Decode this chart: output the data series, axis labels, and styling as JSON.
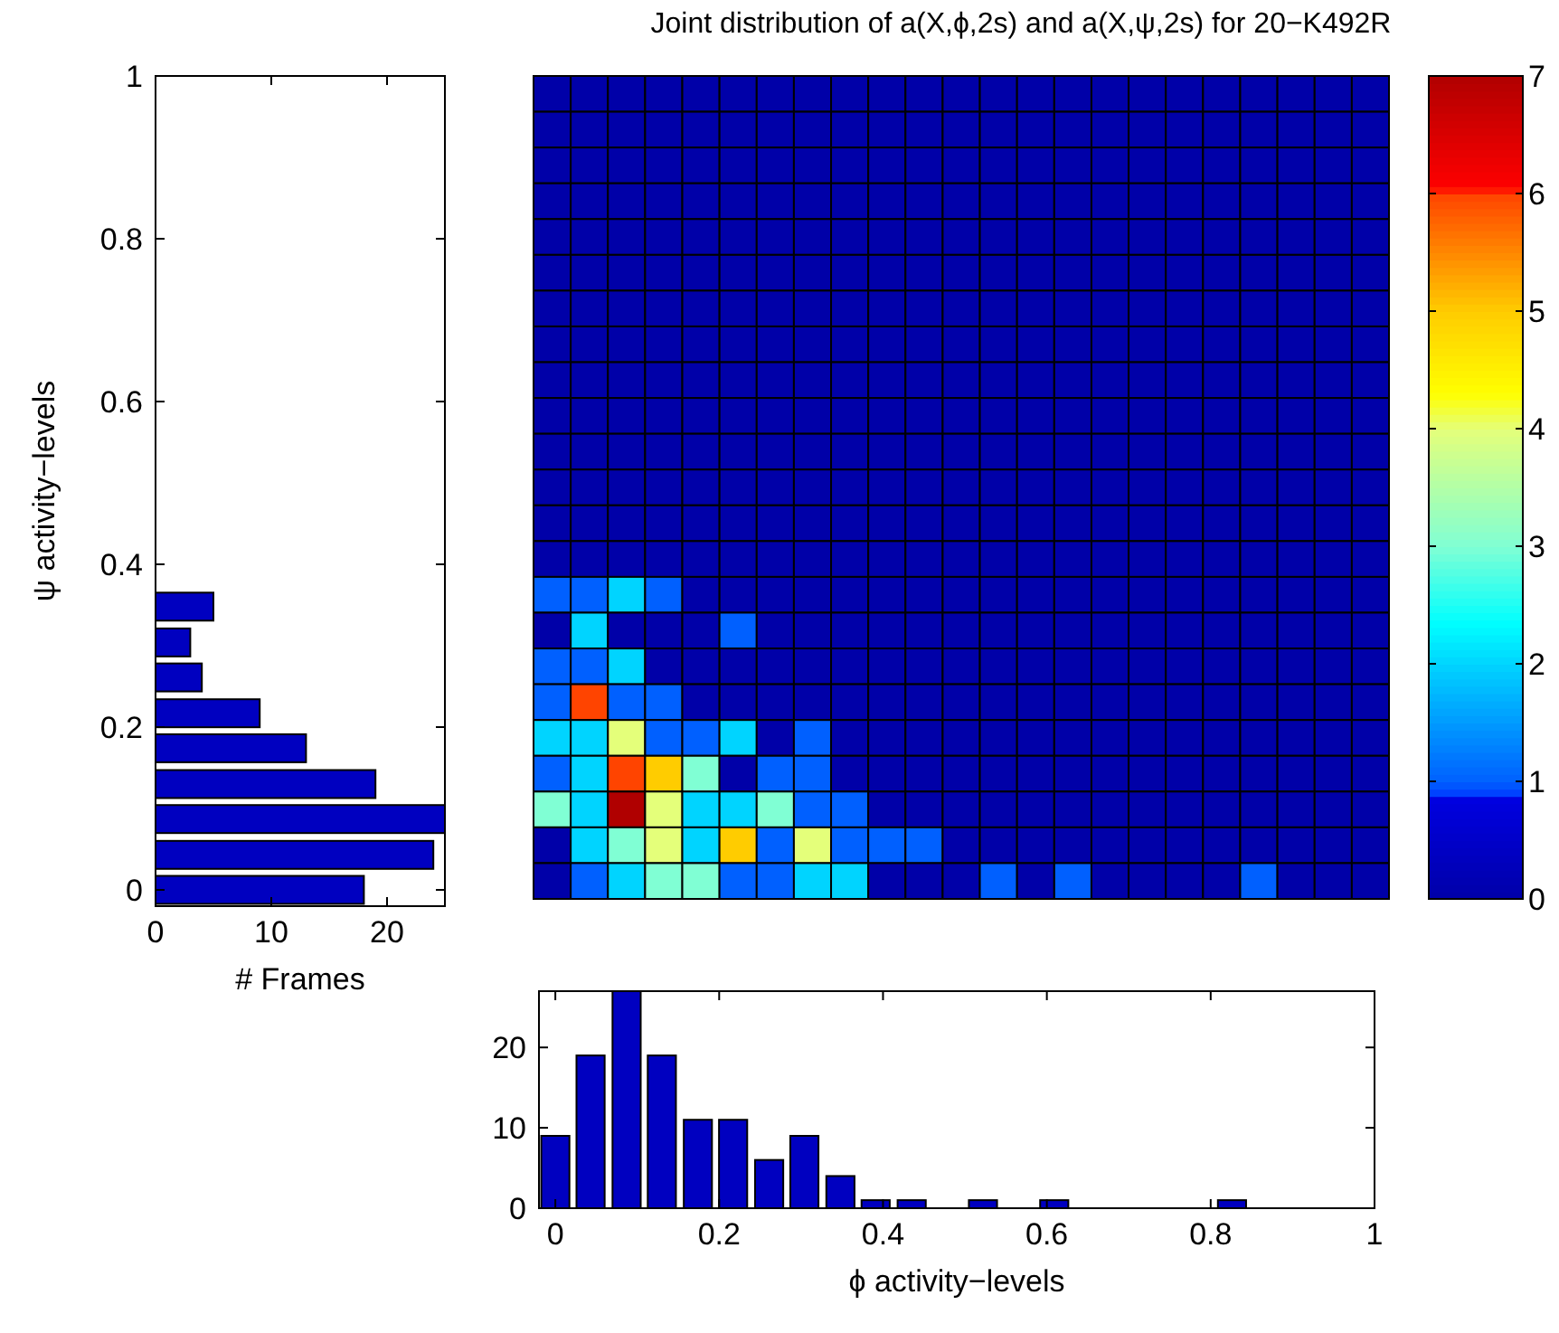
{
  "chart_data": [
    {
      "type": "bar",
      "orientation": "horizontal",
      "x": [
        0,
        0.043,
        0.087,
        0.13,
        0.174,
        0.217,
        0.261,
        0.304,
        0.348
      ],
      "values": [
        18,
        24,
        25,
        19,
        13,
        9,
        4,
        3,
        5
      ],
      "color": "#0000c0",
      "xlim": [
        0,
        25
      ],
      "xticks": [
        0,
        10,
        20
      ],
      "ylim": [
        -0.02,
        1
      ],
      "yticks": [
        0,
        0.2,
        0.4,
        0.6,
        0.8,
        1
      ],
      "xlabel": "# Frames",
      "ylabel": "ψ activity−levels"
    },
    {
      "type": "heatmap",
      "title": "Joint distribution of a(X,ϕ,2s) and a(X,ψ,2s) for 20−K492R",
      "categories": [
        null,
        null,
        null,
        null,
        null,
        null,
        null,
        null,
        null,
        null,
        null,
        null,
        null,
        null,
        null,
        null,
        null,
        null,
        null,
        null,
        null,
        null,
        null
      ],
      "y_categories": [
        null,
        null,
        null,
        null,
        null,
        null,
        null,
        null,
        null,
        null,
        null,
        null,
        null,
        null,
        null,
        null,
        null,
        null,
        null,
        null,
        null,
        null,
        null
      ],
      "cells": [
        [
          0,
          0,
          0,
          0,
          0,
          0,
          0,
          0,
          0,
          0,
          0,
          0,
          0,
          0,
          0,
          0,
          0,
          0,
          0,
          0,
          0,
          0,
          0
        ],
        [
          0,
          0,
          0,
          0,
          0,
          0,
          0,
          0,
          0,
          0,
          0,
          0,
          0,
          0,
          0,
          0,
          0,
          0,
          0,
          0,
          0,
          0,
          0
        ],
        [
          0,
          0,
          0,
          0,
          0,
          0,
          0,
          0,
          0,
          0,
          0,
          0,
          0,
          0,
          0,
          0,
          0,
          0,
          0,
          0,
          0,
          0,
          0
        ],
        [
          0,
          0,
          0,
          0,
          0,
          0,
          0,
          0,
          0,
          0,
          0,
          0,
          0,
          0,
          0,
          0,
          0,
          0,
          0,
          0,
          0,
          0,
          0
        ],
        [
          0,
          0,
          0,
          0,
          0,
          0,
          0,
          0,
          0,
          0,
          0,
          0,
          0,
          0,
          0,
          0,
          0,
          0,
          0,
          0,
          0,
          0,
          0
        ],
        [
          0,
          0,
          0,
          0,
          0,
          0,
          0,
          0,
          0,
          0,
          0,
          0,
          0,
          0,
          0,
          0,
          0,
          0,
          0,
          0,
          0,
          0,
          0
        ],
        [
          0,
          0,
          0,
          0,
          0,
          0,
          0,
          0,
          0,
          0,
          0,
          0,
          0,
          0,
          0,
          0,
          0,
          0,
          0,
          0,
          0,
          0,
          0
        ],
        [
          0,
          0,
          0,
          0,
          0,
          0,
          0,
          0,
          0,
          0,
          0,
          0,
          0,
          0,
          0,
          0,
          0,
          0,
          0,
          0,
          0,
          0,
          0
        ],
        [
          0,
          0,
          0,
          0,
          0,
          0,
          0,
          0,
          0,
          0,
          0,
          0,
          0,
          0,
          0,
          0,
          0,
          0,
          0,
          0,
          0,
          0,
          0
        ],
        [
          0,
          0,
          0,
          0,
          0,
          0,
          0,
          0,
          0,
          0,
          0,
          0,
          0,
          0,
          0,
          0,
          0,
          0,
          0,
          0,
          0,
          0,
          0
        ],
        [
          0,
          0,
          0,
          0,
          0,
          0,
          0,
          0,
          0,
          0,
          0,
          0,
          0,
          0,
          0,
          0,
          0,
          0,
          0,
          0,
          0,
          0,
          0
        ],
        [
          0,
          0,
          0,
          0,
          0,
          0,
          0,
          0,
          0,
          0,
          0,
          0,
          0,
          0,
          0,
          0,
          0,
          0,
          0,
          0,
          0,
          0,
          0
        ],
        [
          0,
          0,
          0,
          0,
          0,
          0,
          0,
          0,
          0,
          0,
          0,
          0,
          0,
          0,
          0,
          0,
          0,
          0,
          0,
          0,
          0,
          0,
          0
        ],
        [
          0,
          0,
          0,
          0,
          0,
          0,
          0,
          0,
          0,
          0,
          0,
          0,
          0,
          0,
          0,
          0,
          0,
          0,
          0,
          0,
          0,
          0,
          0
        ],
        [
          1,
          1,
          2,
          1,
          0,
          0,
          0,
          0,
          0,
          0,
          0,
          0,
          0,
          0,
          0,
          0,
          0,
          0,
          0,
          0,
          0,
          0,
          0
        ],
        [
          0,
          2,
          0,
          0,
          0,
          1,
          0,
          0,
          0,
          0,
          0,
          0,
          0,
          0,
          0,
          0,
          0,
          0,
          0,
          0,
          0,
          0,
          0
        ],
        [
          1,
          1,
          2,
          0,
          0,
          0,
          0,
          0,
          0,
          0,
          0,
          0,
          0,
          0,
          0,
          0,
          0,
          0,
          0,
          0,
          0,
          0,
          0
        ],
        [
          1,
          6,
          1,
          1,
          0,
          0,
          0,
          0,
          0,
          0,
          0,
          0,
          0,
          0,
          0,
          0,
          0,
          0,
          0,
          0,
          0,
          0,
          0
        ],
        [
          2,
          2,
          4,
          1,
          1,
          2,
          0,
          1,
          0,
          0,
          0,
          0,
          0,
          0,
          0,
          0,
          0,
          0,
          0,
          0,
          0,
          0,
          0
        ],
        [
          1,
          2,
          6,
          5,
          3,
          0,
          1,
          1,
          0,
          0,
          0,
          0,
          0,
          0,
          0,
          0,
          0,
          0,
          0,
          0,
          0,
          0,
          0
        ],
        [
          3,
          2,
          7,
          4,
          2,
          2,
          3,
          1,
          1,
          0,
          0,
          0,
          0,
          0,
          0,
          0,
          0,
          0,
          0,
          0,
          0,
          0,
          0
        ],
        [
          0,
          2,
          3,
          4,
          2,
          5,
          1,
          4,
          1,
          1,
          1,
          0,
          0,
          0,
          0,
          0,
          0,
          0,
          0,
          0,
          0,
          0,
          0
        ],
        [
          0,
          1,
          2,
          3,
          3,
          1,
          1,
          2,
          2,
          0,
          0,
          0,
          1,
          0,
          1,
          0,
          0,
          0,
          0,
          1,
          0,
          0,
          0
        ]
      ],
      "clim": [
        0,
        7
      ],
      "cticks": [
        0,
        1,
        2,
        3,
        4,
        5,
        6,
        7
      ]
    },
    {
      "type": "bar",
      "x": [
        0,
        0.043,
        0.087,
        0.13,
        0.174,
        0.217,
        0.261,
        0.304,
        0.348,
        0.391,
        0.435,
        0.522,
        0.609,
        0.826
      ],
      "values": [
        9,
        19,
        27,
        19,
        11,
        11,
        6,
        9,
        4,
        1,
        1,
        1,
        1,
        1
      ],
      "color": "#0000c0",
      "xlim": [
        -0.02,
        1
      ],
      "xticks": [
        0,
        0.2,
        0.4,
        0.6,
        0.8,
        1
      ],
      "ylim": [
        0,
        27
      ],
      "yticks": [
        0,
        10,
        20
      ],
      "xlabel": "ϕ activity−levels"
    }
  ]
}
